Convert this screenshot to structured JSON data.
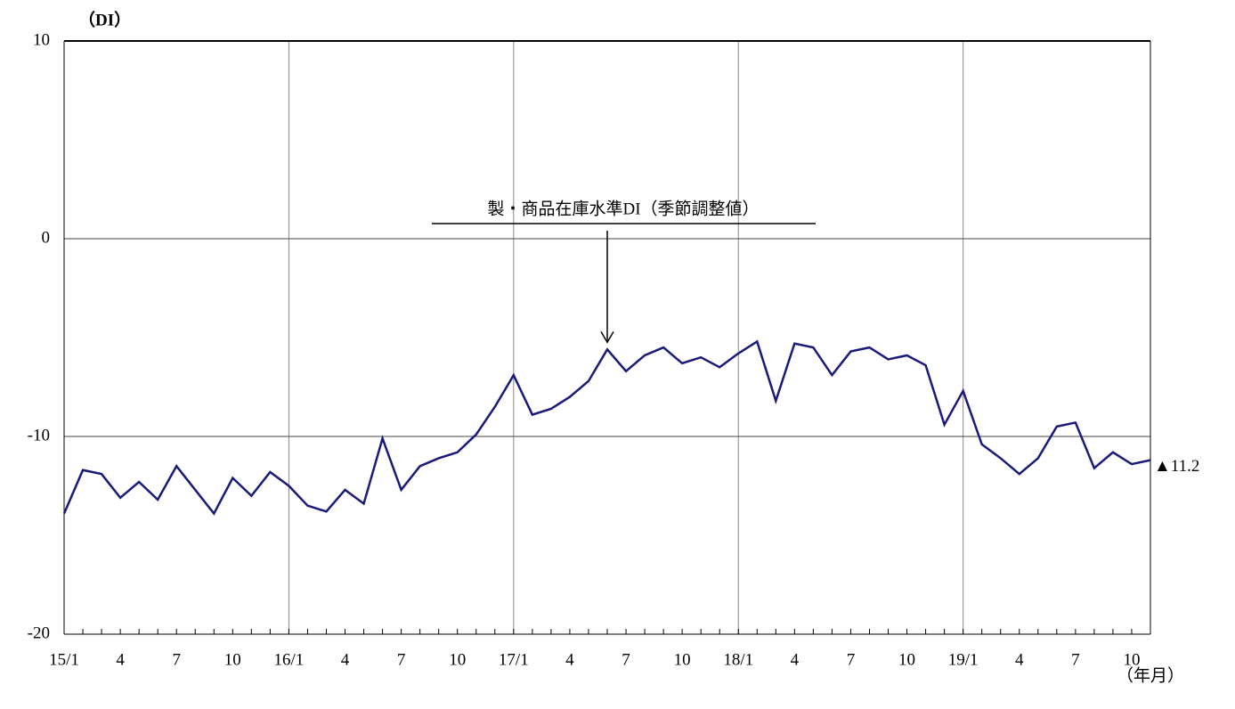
{
  "chart_data": {
    "type": "line",
    "y_label": "（DI）",
    "x_label": "（年月）",
    "annotation": "製・商品在庫水準DI（季節調整値）",
    "annotation_index": 29,
    "categories": [
      "15/1",
      null,
      null,
      "4",
      null,
      null,
      "7",
      null,
      null,
      "10",
      null,
      null,
      "16/1",
      null,
      null,
      "4",
      null,
      null,
      "7",
      null,
      null,
      "10",
      null,
      null,
      "17/1",
      null,
      null,
      "4",
      null,
      null,
      "7",
      null,
      null,
      "10",
      null,
      null,
      "18/1",
      null,
      null,
      "4",
      null,
      null,
      "7",
      null,
      null,
      "10",
      null,
      null,
      "19/1",
      null,
      null,
      "4",
      null,
      null,
      "7",
      null,
      null,
      "10",
      null
    ],
    "series": [
      {
        "name": "製・商品在庫水準DI（季節調整値）",
        "color": "#1a1a7a",
        "values": [
          -13.9,
          -11.7,
          -11.9,
          -13.1,
          -12.3,
          -13.2,
          -11.5,
          -12.7,
          -13.9,
          -12.1,
          -13.0,
          -11.8,
          -12.5,
          -13.5,
          -13.8,
          -12.7,
          -13.4,
          -10.1,
          -12.7,
          -11.5,
          -11.1,
          -10.8,
          -9.9,
          -8.5,
          -6.9,
          -8.9,
          -8.6,
          -8.0,
          -7.2,
          -5.6,
          -6.7,
          -5.9,
          -5.5,
          -6.3,
          -6.0,
          -6.5,
          -5.8,
          -5.2,
          -8.2,
          -5.3,
          -5.5,
          -6.9,
          -5.7,
          -5.5,
          -6.1,
          -5.9,
          -6.4,
          -9.4,
          -7.7,
          -10.4,
          -11.1,
          -11.9,
          -11.1,
          -9.5,
          -9.3,
          -11.6,
          -10.8,
          -11.4,
          -11.2
        ],
        "value_labels": [
          null,
          null,
          null,
          null,
          null,
          null,
          null,
          null,
          null,
          null,
          null,
          null,
          null,
          null,
          null,
          null,
          null,
          null,
          null,
          null,
          null,
          null,
          null,
          null,
          null,
          null,
          null,
          null,
          null,
          null,
          null,
          null,
          null,
          null,
          null,
          null,
          null,
          null,
          null,
          null,
          null,
          null,
          null,
          null,
          null,
          null,
          null,
          null,
          null,
          null,
          null,
          null,
          null,
          null,
          null,
          null,
          null,
          null,
          "▲11.2"
        ]
      }
    ],
    "ylim": [
      -20,
      10
    ],
    "yticks": [
      10,
      0,
      -10,
      -20
    ],
    "grid": true
  }
}
